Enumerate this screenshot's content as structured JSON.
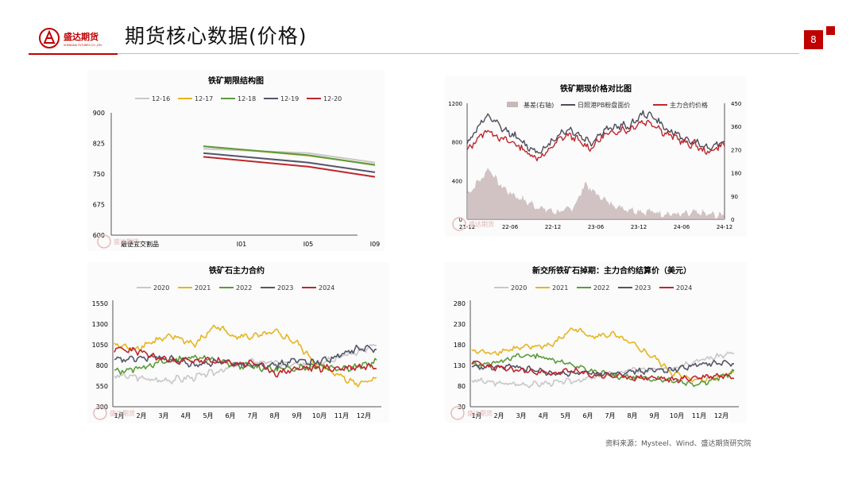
{
  "header": {
    "title": "期货核心数据(价格)",
    "page_number": "8",
    "logo_text": "盛达期货",
    "logo_subtext": "SHENGDA FUTURES CO.,LTD."
  },
  "watermark_text": "盛达期货",
  "source_note": "资料来源：Mysteel、Wind、盛达期货研究院",
  "colors": {
    "brand_red": "#c00000"
  },
  "chart_data": [
    {
      "type": "line",
      "title": "铁矿期限结构图",
      "categories": [
        "最便宜交割品",
        "I01",
        "I05",
        "I09"
      ],
      "ylim": [
        600,
        900
      ],
      "yticks": [
        600,
        675,
        750,
        825,
        900
      ],
      "series": [
        {
          "name": "12-16",
          "color": "#c8c8c8",
          "values": [
            null,
            812,
            801,
            778
          ]
        },
        {
          "name": "12-17",
          "color": "#e6b422",
          "values": [
            null,
            818,
            795,
            773
          ]
        },
        {
          "name": "12-18",
          "color": "#5b9b3a",
          "values": [
            null,
            818,
            796,
            772
          ]
        },
        {
          "name": "12-19",
          "color": "#55566a",
          "values": [
            null,
            801,
            778,
            754
          ]
        },
        {
          "name": "12-20",
          "color": "#c0262c",
          "values": [
            null,
            792,
            768,
            743
          ]
        }
      ]
    },
    {
      "type": "line",
      "title": "铁矿期现价格对比图",
      "xlabels": [
        "21-12",
        "22-06",
        "22-12",
        "23-06",
        "23-12",
        "24-06",
        "24-12"
      ],
      "ylim": [
        0,
        1200
      ],
      "yticks": [
        0,
        400,
        800,
        1200
      ],
      "y2lim": [
        0,
        450
      ],
      "y2ticks": [
        0,
        90,
        180,
        270,
        360,
        450
      ],
      "series": [
        {
          "name": "基差(右轴)",
          "kind": "area",
          "axis": "right",
          "color": "#c9b8b8",
          "values": [
            95,
            130,
            160,
            200,
            150,
            120,
            100,
            85,
            70,
            55,
            45,
            35,
            30,
            30,
            40,
            70,
            140,
            110,
            90,
            70,
            55,
            45,
            40,
            35,
            30,
            30,
            25,
            22,
            20,
            18,
            20,
            25,
            22,
            18,
            15,
            15
          ]
        },
        {
          "name": "日照港PB粉盘面价",
          "color": "#4d4d5c",
          "values": [
            780,
            900,
            1010,
            1060,
            990,
            920,
            890,
            830,
            760,
            720,
            700,
            760,
            850,
            900,
            930,
            880,
            830,
            790,
            880,
            930,
            950,
            970,
            960,
            1030,
            1090,
            1080,
            1010,
            930,
            900,
            860,
            800,
            810,
            760,
            740,
            790,
            800
          ]
        },
        {
          "name": "主力合约价格",
          "color": "#c0262c",
          "values": [
            700,
            800,
            880,
            920,
            860,
            820,
            800,
            760,
            700,
            650,
            640,
            700,
            790,
            850,
            870,
            820,
            760,
            740,
            830,
            880,
            900,
            930,
            920,
            980,
            1010,
            1000,
            950,
            880,
            860,
            820,
            770,
            780,
            710,
            690,
            750,
            770
          ]
        }
      ]
    },
    {
      "type": "line",
      "title": "铁矿石主力合约",
      "xlabels": [
        "1月",
        "2月",
        "3月",
        "4月",
        "5月",
        "6月",
        "7月",
        "8月",
        "9月",
        "10月",
        "11月",
        "12月"
      ],
      "ylim": [
        300,
        1550
      ],
      "yticks": [
        300,
        550,
        800,
        1050,
        1300,
        1550
      ],
      "series": [
        {
          "name": "2020",
          "color": "#c8c8c8",
          "values": [
            680,
            660,
            620,
            630,
            660,
            720,
            800,
            850,
            830,
            800,
            830,
            900,
            960,
            1050
          ]
        },
        {
          "name": "2021",
          "color": "#e6b422",
          "values": [
            1050,
            1000,
            1100,
            1150,
            1050,
            1280,
            1150,
            1150,
            1200,
            1080,
            820,
            700,
            580,
            650
          ]
        },
        {
          "name": "2022",
          "color": "#5b9b3a",
          "values": [
            720,
            760,
            820,
            870,
            910,
            860,
            800,
            780,
            750,
            770,
            800,
            770,
            780,
            850
          ]
        },
        {
          "name": "2023",
          "color": "#55566a",
          "values": [
            860,
            880,
            900,
            870,
            800,
            850,
            810,
            820,
            800,
            860,
            840,
            900,
            1000,
            1000
          ]
        },
        {
          "name": "2024",
          "color": "#c0262c",
          "values": [
            1000,
            980,
            900,
            850,
            860,
            850,
            820,
            830,
            700,
            760,
            770,
            760,
            780,
            800
          ]
        }
      ]
    },
    {
      "type": "line",
      "title": "新交所铁矿石掉期：主力合约结算价（美元）",
      "xlabels": [
        "1月",
        "2月",
        "3月",
        "4月",
        "5月",
        "6月",
        "7月",
        "8月",
        "9月",
        "10月",
        "11月",
        "12月"
      ],
      "ylim": [
        30,
        280
      ],
      "yticks": [
        30,
        80,
        130,
        180,
        230,
        280
      ],
      "series": [
        {
          "name": "2020",
          "color": "#c8c8c8",
          "values": [
            95,
            88,
            85,
            84,
            88,
            92,
            100,
            110,
            120,
            118,
            125,
            140,
            150,
            160
          ]
        },
        {
          "name": "2021",
          "color": "#e6b422",
          "values": [
            165,
            160,
            170,
            175,
            180,
            220,
            200,
            205,
            180,
            150,
            110,
            95,
            100,
            115
          ]
        },
        {
          "name": "2022",
          "color": "#5b9b3a",
          "values": [
            130,
            135,
            150,
            155,
            145,
            130,
            115,
            105,
            100,
            98,
            95,
            85,
            95,
            115
          ]
        },
        {
          "name": "2023",
          "color": "#55566a",
          "values": [
            125,
            125,
            128,
            120,
            110,
            112,
            110,
            112,
            115,
            118,
            120,
            130,
            135,
            135
          ]
        },
        {
          "name": "2024",
          "color": "#c0262c",
          "values": [
            140,
            125,
            120,
            115,
            110,
            118,
            105,
            105,
            100,
            100,
            95,
            100,
            105,
            105
          ]
        }
      ]
    }
  ]
}
